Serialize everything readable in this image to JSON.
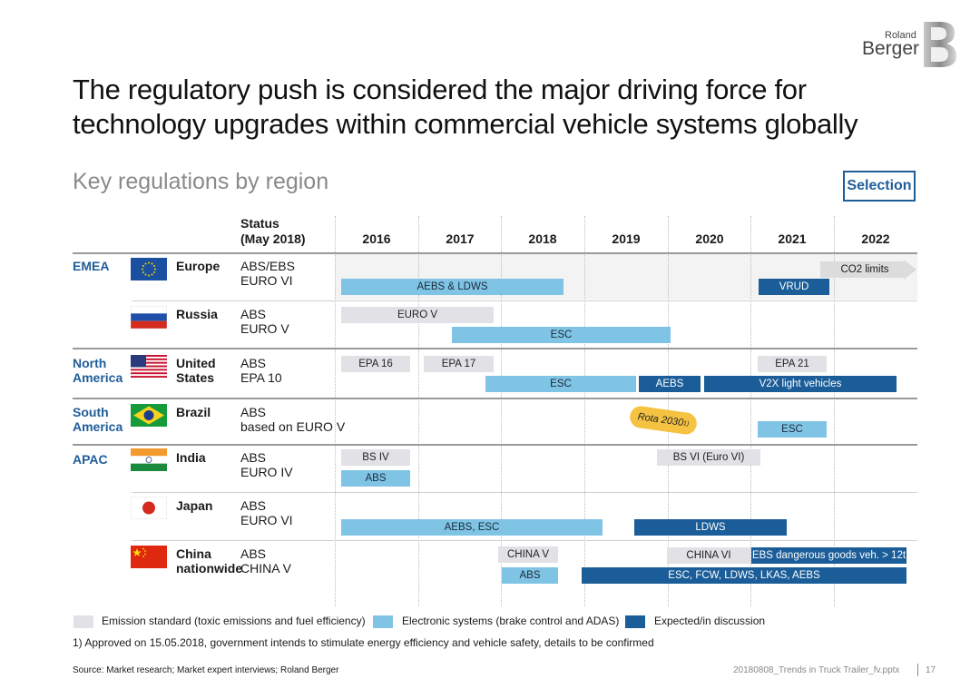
{
  "brand": {
    "small": "Roland",
    "big": "Berger",
    "colors": {
      "blue": "#1f5d99",
      "light": "#7fc4e4",
      "dark": "#1a5d98",
      "grey": "#e2e2e6",
      "rota": "#f5c242"
    }
  },
  "title": "The regulatory push is considered the major driving force for technology upgrades within commercial vehicle systems globally",
  "subtitle": "Key regulations by region",
  "selection_label": "Selection",
  "table": {
    "status_header_line1": "Status",
    "status_header_line2": "(May 2018)",
    "years": [
      "2016",
      "2017",
      "2018",
      "2019",
      "2020",
      "2021",
      "2022"
    ]
  },
  "regions": {
    "emea": "EMEA",
    "north_america_1": "North",
    "north_america_2": "America",
    "south_america_1": "South",
    "south_america_2": "America",
    "apac": "APAC"
  },
  "countries": {
    "europe": {
      "name": "Europe",
      "status1": "ABS/EBS",
      "status2": "EURO VI"
    },
    "russia": {
      "name": "Russia",
      "status1": "ABS",
      "status2": "EURO V"
    },
    "us": {
      "name1": "United",
      "name2": "States",
      "status1": "ABS",
      "status2": "EPA 10"
    },
    "brazil": {
      "name": "Brazil",
      "status1": "ABS",
      "status2": "based on EURO V"
    },
    "india": {
      "name": "India",
      "status1": "ABS",
      "status2": "EURO IV"
    },
    "japan": {
      "name": "Japan",
      "status1": "ABS",
      "status2": "EURO VI"
    },
    "china": {
      "name1": "China",
      "name2": "nationwide",
      "status1": "ABS",
      "status2": "CHINA V"
    }
  },
  "bars": {
    "co2": "CO2 limits",
    "aebs_ldws": "AEBS & LDWS",
    "vrud": "VRUD",
    "euro_v": "EURO V",
    "ru_esc": "ESC",
    "epa16": "EPA 16",
    "epa17": "EPA 17",
    "epa21": "EPA 21",
    "us_esc": "ESC",
    "us_aebs": "AEBS",
    "v2x": "V2X light vehicles",
    "rota": "Rota 2030",
    "rota_sup": "1)",
    "br_esc": "ESC",
    "bs4": "BS IV",
    "in_abs": "ABS",
    "bs6": "BS VI (Euro VI)",
    "jp_aebs_esc": "AEBS, ESC",
    "jp_ldws": "LDWS",
    "china5": "CHINA V",
    "china6": "CHINA VI",
    "ebs_dg": "EBS dangerous goods veh. > 12t",
    "cn_abs": "ABS",
    "cn_esc_group": "ESC, FCW, LDWS, LKAS, AEBS"
  },
  "legend": {
    "emission": "Emission standard (toxic emissions and fuel efficiency)",
    "electronic": "Electronic systems (brake control and ADAS)",
    "expected": "Expected/in discussion"
  },
  "footnote": "1) Approved on 15.05.2018, government intends to stimulate energy efficiency and vehicle safety, details to be confirmed",
  "source": "Source: Market research; Market expert interviews; Roland Berger",
  "filename": "20180808_Trends in Truck Trailer_fv.pptx",
  "page_number": "17"
}
